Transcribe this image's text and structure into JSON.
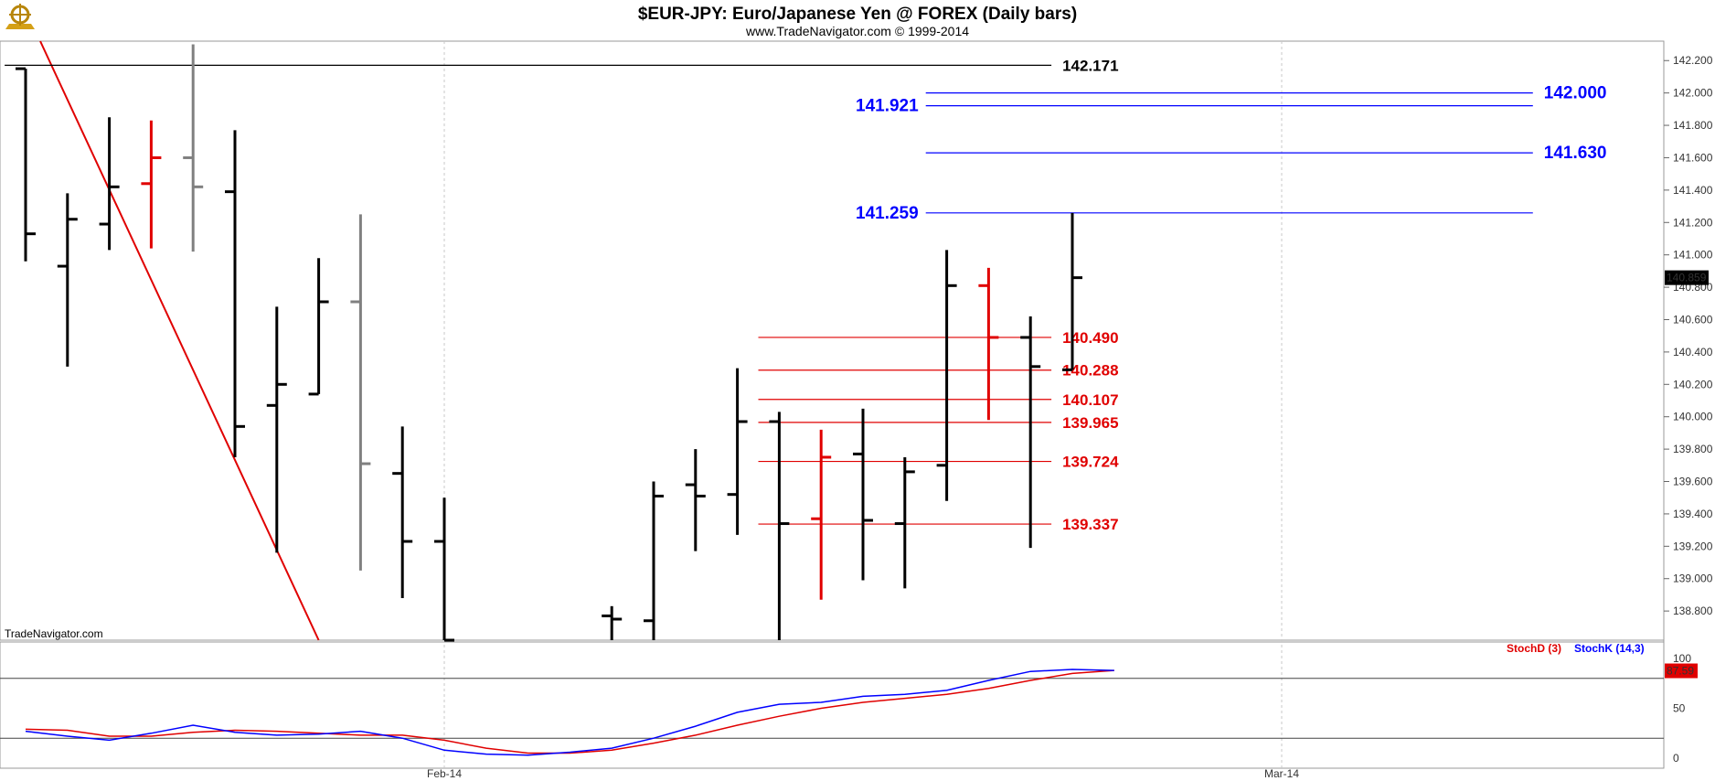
{
  "header": {
    "title": "$EUR-JPY:  Euro/Japanese Yen @ FOREX  (Daily bars)",
    "subtitle": "www.TradeNavigator.com © 1999-2014",
    "logo_icon": "trade-navigator-logo-icon"
  },
  "watermark": "TradeNavigator.com",
  "chart_data": {
    "type": "ohlc",
    "price_axis": {
      "ylim": [
        138.62,
        142.32
      ],
      "ticks": [
        "138.800",
        "139.000",
        "139.200",
        "139.400",
        "139.600",
        "139.800",
        "140.000",
        "140.200",
        "140.400",
        "140.600",
        "140.800",
        "141.000",
        "141.200",
        "141.400",
        "141.600",
        "141.800",
        "142.000",
        "142.200"
      ],
      "tick_values": [
        138.8,
        139.0,
        139.2,
        139.4,
        139.6,
        139.8,
        140.0,
        140.2,
        140.4,
        140.6,
        140.8,
        141.0,
        141.2,
        141.4,
        141.6,
        141.8,
        142.0,
        142.2
      ],
      "last_price": "140.859",
      "last_price_value": 140.859
    },
    "x_axis": {
      "labels": [
        "Feb-14",
        "Mar-14"
      ],
      "label_bar_index": [
        10,
        30
      ],
      "grid": "dashed-vertical"
    },
    "bars": [
      {
        "o": 142.15,
        "h": 142.15,
        "l": 140.96,
        "c": 141.13,
        "color": "black"
      },
      {
        "o": 140.93,
        "h": 141.38,
        "l": 140.31,
        "c": 141.22,
        "color": "black"
      },
      {
        "o": 141.19,
        "h": 141.85,
        "l": 141.03,
        "c": 141.42,
        "color": "black"
      },
      {
        "o": 141.44,
        "h": 141.83,
        "l": 141.04,
        "c": 141.6,
        "color": "red"
      },
      {
        "o": 141.6,
        "h": 142.3,
        "l": 141.02,
        "c": 141.42,
        "color": "gray"
      },
      {
        "o": 141.39,
        "h": 141.77,
        "l": 139.75,
        "c": 139.94,
        "color": "black"
      },
      {
        "o": 140.07,
        "h": 140.68,
        "l": 139.16,
        "c": 140.2,
        "color": "black"
      },
      {
        "o": 140.14,
        "h": 140.98,
        "l": 140.14,
        "c": 140.71,
        "color": "black"
      },
      {
        "o": 140.71,
        "h": 141.25,
        "l": 139.05,
        "c": 139.71,
        "color": "gray"
      },
      {
        "o": 139.65,
        "h": 139.94,
        "l": 138.88,
        "c": 139.23,
        "color": "black"
      },
      {
        "o": 139.23,
        "h": 139.5,
        "l": 138.62,
        "c": 138.62,
        "color": "black"
      },
      {
        "o": null,
        "h": null,
        "l": null,
        "c": null,
        "color": "none"
      },
      {
        "o": null,
        "h": null,
        "l": null,
        "c": null,
        "color": "none"
      },
      {
        "o": null,
        "h": null,
        "l": null,
        "c": null,
        "color": "none"
      },
      {
        "o": 138.77,
        "h": 138.83,
        "l": 138.62,
        "c": 138.75,
        "color": "black"
      },
      {
        "o": 138.74,
        "h": 139.6,
        "l": 138.62,
        "c": 139.51,
        "color": "black"
      },
      {
        "o": 139.58,
        "h": 139.8,
        "l": 139.17,
        "c": 139.51,
        "color": "black"
      },
      {
        "o": 139.52,
        "h": 140.3,
        "l": 139.27,
        "c": 139.97,
        "color": "black"
      },
      {
        "o": 139.97,
        "h": 140.03,
        "l": 138.62,
        "c": 139.34,
        "color": "black"
      },
      {
        "o": 139.37,
        "h": 139.92,
        "l": 138.87,
        "c": 139.75,
        "color": "red"
      },
      {
        "o": 139.77,
        "h": 140.05,
        "l": 138.99,
        "c": 139.36,
        "color": "black"
      },
      {
        "o": 139.34,
        "h": 139.75,
        "l": 138.94,
        "c": 139.66,
        "color": "black"
      },
      {
        "o": 139.7,
        "h": 141.03,
        "l": 139.48,
        "c": 140.81,
        "color": "black"
      },
      {
        "o": 140.81,
        "h": 140.92,
        "l": 139.98,
        "c": 140.49,
        "color": "red"
      },
      {
        "o": 140.49,
        "h": 140.62,
        "l": 139.19,
        "c": 140.31,
        "color": "black"
      },
      {
        "o": 140.29,
        "h": 141.259,
        "l": 140.29,
        "c": 140.859,
        "color": "black"
      }
    ],
    "trendline": {
      "color": "#e00000",
      "from": {
        "bar": 0.35,
        "price": 142.32
      },
      "to": {
        "bar": 7.0,
        "price": 138.62
      }
    },
    "levels": [
      {
        "label": "142.171",
        "value": 142.171,
        "color": "#000000",
        "from_bar": -0.5,
        "to_bar": 24.5,
        "label_side": "right"
      },
      {
        "label": "142.000",
        "value": 142.0,
        "color": "#0000ff",
        "from_bar": 21.5,
        "to_bar": 36.0,
        "label_side": "right"
      },
      {
        "label": "141.921",
        "value": 141.921,
        "color": "#0000ff",
        "from_bar": 21.5,
        "to_bar": 36.0,
        "label_side": "left"
      },
      {
        "label": "141.630",
        "value": 141.63,
        "color": "#0000ff",
        "from_bar": 21.5,
        "to_bar": 36.0,
        "label_side": "right"
      },
      {
        "label": "141.259",
        "value": 141.259,
        "color": "#0000ff",
        "from_bar": 21.5,
        "to_bar": 36.0,
        "label_side": "left"
      },
      {
        "label": "140.490",
        "value": 140.49,
        "color": "#e00000",
        "from_bar": 17.5,
        "to_bar": 24.5,
        "label_side": "right"
      },
      {
        "label": "140.288",
        "value": 140.288,
        "color": "#e00000",
        "from_bar": 17.5,
        "to_bar": 24.5,
        "label_side": "right"
      },
      {
        "label": "140.107",
        "value": 140.107,
        "color": "#e00000",
        "from_bar": 17.5,
        "to_bar": 24.5,
        "label_side": "right"
      },
      {
        "label": "139.965",
        "value": 139.965,
        "color": "#e00000",
        "from_bar": 17.5,
        "to_bar": 24.5,
        "label_side": "right"
      },
      {
        "label": "139.724",
        "value": 139.724,
        "color": "#e00000",
        "from_bar": 17.5,
        "to_bar": 24.5,
        "label_side": "right"
      },
      {
        "label": "139.337",
        "value": 139.337,
        "color": "#e00000",
        "from_bar": 17.5,
        "to_bar": 24.5,
        "label_side": "right"
      }
    ],
    "stochastic": {
      "ylim": [
        0,
        100
      ],
      "ticks": [
        "100",
        "50",
        "0"
      ],
      "tick_values": [
        100,
        50,
        0
      ],
      "ref_lines": [
        80,
        20
      ],
      "legend": [
        {
          "name": "StochD (3)",
          "color": "#e00000"
        },
        {
          "name": "StochK (14,3)",
          "color": "#0000ff"
        }
      ],
      "last_value": "87.59",
      "last_value_num": 87.59,
      "d_values": [
        29,
        28,
        22,
        22,
        26,
        28,
        27,
        25,
        23,
        23,
        18,
        10,
        5,
        5,
        8,
        15,
        23,
        33,
        42,
        50,
        56,
        60,
        64,
        70,
        78,
        85,
        88
      ],
      "k_values": [
        27,
        22,
        18,
        25,
        33,
        26,
        23,
        24,
        27,
        20,
        8,
        4,
        3,
        6,
        10,
        20,
        32,
        46,
        54,
        56,
        62,
        64,
        68,
        78,
        87,
        89,
        88
      ]
    }
  }
}
